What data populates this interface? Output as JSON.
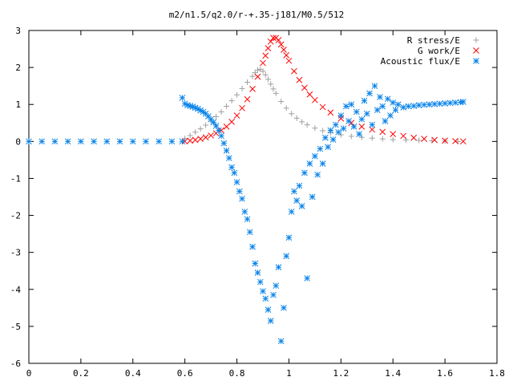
{
  "chart_data": {
    "type": "scatter",
    "title": "m2/n1.5/q2.0/r-+.35-j181/M0.5/512",
    "xlabel": "",
    "ylabel": "",
    "xlim": [
      0,
      1.8
    ],
    "ylim": [
      -6,
      3
    ],
    "x_ticks": [
      "0",
      "0.2",
      "0.4",
      "0.6",
      "0.8",
      "1",
      "1.2",
      "1.4",
      "1.6",
      "1.8"
    ],
    "y_ticks": [
      "3",
      "2",
      "1",
      "0",
      "-1",
      "-2",
      "-3",
      "-4",
      "-5",
      "-6"
    ],
    "grid": false,
    "legend_position": "top-right",
    "series": [
      {
        "name": "R stress/E",
        "marker": "+",
        "color": "#a0a0a0",
        "points": [
          [
            0.6,
            0.08
          ],
          [
            0.62,
            0.16
          ],
          [
            0.64,
            0.25
          ],
          [
            0.66,
            0.34
          ],
          [
            0.68,
            0.44
          ],
          [
            0.7,
            0.55
          ],
          [
            0.72,
            0.67
          ],
          [
            0.74,
            0.8
          ],
          [
            0.76,
            0.95
          ],
          [
            0.78,
            1.1
          ],
          [
            0.8,
            1.26
          ],
          [
            0.82,
            1.43
          ],
          [
            0.84,
            1.6
          ],
          [
            0.86,
            1.76
          ],
          [
            0.87,
            1.86
          ],
          [
            0.88,
            1.93
          ],
          [
            0.89,
            1.95
          ],
          [
            0.9,
            1.9
          ],
          [
            0.91,
            1.8
          ],
          [
            0.92,
            1.68
          ],
          [
            0.93,
            1.55
          ],
          [
            0.94,
            1.42
          ],
          [
            0.95,
            1.3
          ],
          [
            0.97,
            1.08
          ],
          [
            0.99,
            0.9
          ],
          [
            1.01,
            0.75
          ],
          [
            1.03,
            0.63
          ],
          [
            1.05,
            0.53
          ],
          [
            1.07,
            0.45
          ],
          [
            1.1,
            0.36
          ],
          [
            1.13,
            0.29
          ],
          [
            1.16,
            0.23
          ],
          [
            1.2,
            0.18
          ],
          [
            1.24,
            0.14
          ],
          [
            1.28,
            0.11
          ],
          [
            1.32,
            0.09
          ],
          [
            1.36,
            0.07
          ],
          [
            1.4,
            0.05
          ],
          [
            1.45,
            0.04
          ],
          [
            1.5,
            0.03
          ],
          [
            1.55,
            0.02
          ],
          [
            1.6,
            0.01
          ],
          [
            1.65,
            0.0
          ]
        ]
      },
      {
        "name": "G work/E",
        "marker": "x",
        "color": "#ff0000",
        "points": [
          [
            0.6,
            0.0
          ],
          [
            0.62,
            0.02
          ],
          [
            0.64,
            0.04
          ],
          [
            0.66,
            0.07
          ],
          [
            0.68,
            0.11
          ],
          [
            0.7,
            0.16
          ],
          [
            0.72,
            0.22
          ],
          [
            0.74,
            0.3
          ],
          [
            0.76,
            0.4
          ],
          [
            0.78,
            0.53
          ],
          [
            0.8,
            0.7
          ],
          [
            0.82,
            0.9
          ],
          [
            0.84,
            1.14
          ],
          [
            0.86,
            1.42
          ],
          [
            0.88,
            1.75
          ],
          [
            0.9,
            2.12
          ],
          [
            0.91,
            2.32
          ],
          [
            0.92,
            2.52
          ],
          [
            0.93,
            2.7
          ],
          [
            0.94,
            2.8
          ],
          [
            0.95,
            2.8
          ],
          [
            0.96,
            2.74
          ],
          [
            0.97,
            2.62
          ],
          [
            0.98,
            2.48
          ],
          [
            0.99,
            2.33
          ],
          [
            1.0,
            2.18
          ],
          [
            1.02,
            1.9
          ],
          [
            1.04,
            1.66
          ],
          [
            1.06,
            1.45
          ],
          [
            1.08,
            1.27
          ],
          [
            1.1,
            1.12
          ],
          [
            1.13,
            0.93
          ],
          [
            1.16,
            0.78
          ],
          [
            1.2,
            0.62
          ],
          [
            1.24,
            0.5
          ],
          [
            1.28,
            0.4
          ],
          [
            1.32,
            0.32
          ],
          [
            1.36,
            0.26
          ],
          [
            1.4,
            0.2
          ],
          [
            1.44,
            0.15
          ],
          [
            1.48,
            0.1
          ],
          [
            1.52,
            0.07
          ],
          [
            1.56,
            0.04
          ],
          [
            1.6,
            0.02
          ],
          [
            1.64,
            0.01
          ],
          [
            1.67,
            0.0
          ]
        ]
      },
      {
        "name": "Acoustic flux/E",
        "marker": "*",
        "color": "#0a84e8",
        "points": [
          [
            0.0,
            0.0
          ],
          [
            0.05,
            0.0
          ],
          [
            0.1,
            0.0
          ],
          [
            0.15,
            0.0
          ],
          [
            0.2,
            0.0
          ],
          [
            0.25,
            0.0
          ],
          [
            0.3,
            0.0
          ],
          [
            0.35,
            0.0
          ],
          [
            0.4,
            0.0
          ],
          [
            0.45,
            0.0
          ],
          [
            0.5,
            0.0
          ],
          [
            0.55,
            0.0
          ],
          [
            0.59,
            0.0
          ],
          [
            0.59,
            1.18
          ],
          [
            0.6,
            1.02
          ],
          [
            0.61,
            0.98
          ],
          [
            0.62,
            0.96
          ],
          [
            0.63,
            0.94
          ],
          [
            0.64,
            0.91
          ],
          [
            0.65,
            0.88
          ],
          [
            0.66,
            0.84
          ],
          [
            0.67,
            0.8
          ],
          [
            0.68,
            0.75
          ],
          [
            0.69,
            0.68
          ],
          [
            0.7,
            0.6
          ],
          [
            0.71,
            0.52
          ],
          [
            0.72,
            0.42
          ],
          [
            0.73,
            0.3
          ],
          [
            0.74,
            0.15
          ],
          [
            0.75,
            -0.05
          ],
          [
            0.76,
            -0.25
          ],
          [
            0.77,
            -0.45
          ],
          [
            0.78,
            -0.7
          ],
          [
            0.79,
            -0.85
          ],
          [
            0.8,
            -1.1
          ],
          [
            0.81,
            -1.35
          ],
          [
            0.82,
            -1.55
          ],
          [
            0.83,
            -1.9
          ],
          [
            0.84,
            -2.1
          ],
          [
            0.85,
            -2.45
          ],
          [
            0.86,
            -2.85
          ],
          [
            0.87,
            -3.3
          ],
          [
            0.88,
            -3.55
          ],
          [
            0.89,
            -3.8
          ],
          [
            0.9,
            -4.05
          ],
          [
            0.91,
            -4.25
          ],
          [
            0.92,
            -4.55
          ],
          [
            0.93,
            -4.85
          ],
          [
            0.94,
            -4.15
          ],
          [
            0.95,
            -3.9
          ],
          [
            0.96,
            -3.4
          ],
          [
            0.97,
            -5.4
          ],
          [
            0.98,
            -4.5
          ],
          [
            0.99,
            -3.1
          ],
          [
            1.0,
            -2.6
          ],
          [
            1.01,
            -1.9
          ],
          [
            1.02,
            -1.35
          ],
          [
            1.03,
            -1.6
          ],
          [
            1.04,
            -1.2
          ],
          [
            1.05,
            -1.75
          ],
          [
            1.06,
            -0.85
          ],
          [
            1.07,
            -3.7
          ],
          [
            1.08,
            -0.6
          ],
          [
            1.09,
            -1.5
          ],
          [
            1.1,
            -0.4
          ],
          [
            1.11,
            -0.9
          ],
          [
            1.12,
            -0.2
          ],
          [
            1.13,
            -0.6
          ],
          [
            1.14,
            0.1
          ],
          [
            1.15,
            -0.15
          ],
          [
            1.16,
            0.3
          ],
          [
            1.17,
            0.05
          ],
          [
            1.18,
            0.45
          ],
          [
            1.19,
            0.25
          ],
          [
            1.2,
            0.7
          ],
          [
            1.21,
            0.35
          ],
          [
            1.22,
            0.95
          ],
          [
            1.23,
            0.55
          ],
          [
            1.24,
            1.0
          ],
          [
            1.25,
            0.4
          ],
          [
            1.26,
            0.8
          ],
          [
            1.27,
            0.2
          ],
          [
            1.28,
            0.6
          ],
          [
            1.29,
            1.1
          ],
          [
            1.3,
            0.75
          ],
          [
            1.31,
            1.3
          ],
          [
            1.32,
            0.45
          ],
          [
            1.33,
            1.5
          ],
          [
            1.34,
            0.85
          ],
          [
            1.35,
            1.2
          ],
          [
            1.36,
            0.95
          ],
          [
            1.37,
            0.55
          ],
          [
            1.38,
            1.15
          ],
          [
            1.39,
            0.7
          ],
          [
            1.4,
            1.05
          ],
          [
            1.41,
            0.85
          ],
          [
            1.42,
            1.0
          ],
          [
            1.44,
            0.92
          ],
          [
            1.46,
            0.95
          ],
          [
            1.48,
            0.96
          ],
          [
            1.5,
            0.98
          ],
          [
            1.52,
            0.99
          ],
          [
            1.54,
            1.0
          ],
          [
            1.56,
            1.01
          ],
          [
            1.58,
            1.02
          ],
          [
            1.6,
            1.03
          ],
          [
            1.62,
            1.04
          ],
          [
            1.64,
            1.05
          ],
          [
            1.66,
            1.06
          ],
          [
            1.67,
            1.07
          ]
        ]
      }
    ]
  }
}
